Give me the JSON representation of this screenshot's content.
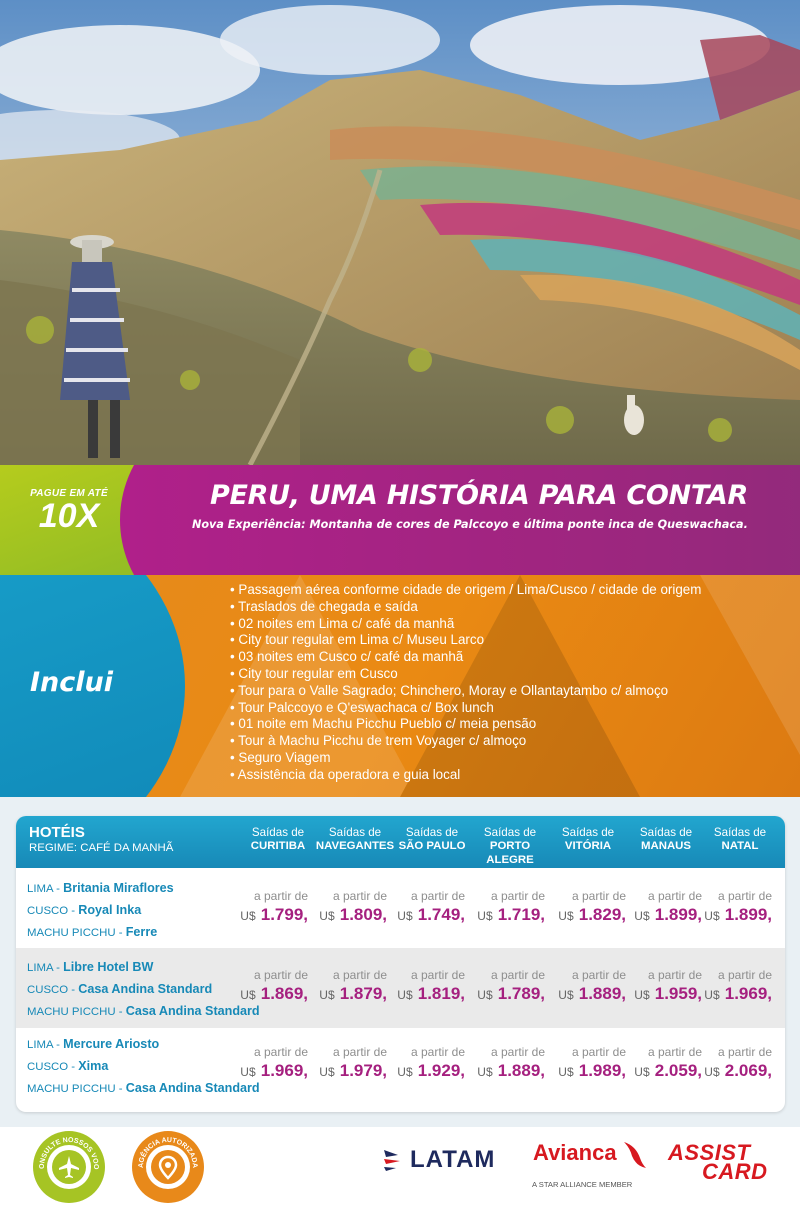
{
  "hero": {
    "description_icon": "mountain-photo"
  },
  "banner": {
    "badge_top": "PAGUE EM ATÉ",
    "badge_big": "10X",
    "title": "PERU, UMA HISTÓRIA PARA CONTAR",
    "subtitle": "Nova Experiência: Montanha de cores de Palccoyo e última ponte inca de Queswachaca."
  },
  "includes": {
    "label": "Inclui",
    "items": [
      "Passagem aérea conforme cidade de origem / Lima/Cusco / cidade de origem",
      "Traslados de chegada e saída",
      "02 noites em Lima c/ café da manhã",
      "City tour regular em Lima c/ Museu Larco",
      "03 noites em Cusco c/ café da manhã",
      "City tour regular em Cusco",
      "Tour para o Valle Sagrado; Chinchero, Moray e Ollantaytambo c/ almoço",
      "Tour Palccoyo e Q'eswachaca c/ Box lunch",
      "01 noite em Machu Picchu Pueblo c/ meia pensão",
      "Tour à Machu Picchu de trem Voyager c/ almoço",
      "Seguro Viagem",
      "Assistência da operadora e guia local"
    ]
  },
  "table": {
    "hotels_label": "HOTÉIS",
    "regime_label": "REGIME: CAFÉ DA MANHÃ",
    "departures_prefix": "Saídas de",
    "cities": [
      "CURITIBA",
      "NAVEGANTES",
      "SÃO PAULO",
      "PORTO ALEGRE",
      "VITÓRIA",
      "MANAUS",
      "NATAL"
    ],
    "from_label": "a partir de",
    "currency": "U$",
    "rows": [
      {
        "hotels": [
          {
            "city": "LIMA",
            "name": "Britania Miraflores"
          },
          {
            "city": "CUSCO",
            "name": "Royal Inka"
          },
          {
            "city": "MACHU PICCHU",
            "name": "Ferre"
          }
        ],
        "prices": [
          "1.799,",
          "1.809,",
          "1.749,",
          "1.719,",
          "1.829,",
          "1.899,",
          "1.899,"
        ]
      },
      {
        "hotels": [
          {
            "city": "LIMA",
            "name": "Libre Hotel BW"
          },
          {
            "city": "CUSCO",
            "name": "Casa Andina Standard"
          },
          {
            "city": "MACHU PICCHU",
            "name": "Casa Andina Standard"
          }
        ],
        "prices": [
          "1.869,",
          "1.879,",
          "1.819,",
          "1.789,",
          "1.889,",
          "1.959,",
          "1.969,"
        ]
      },
      {
        "hotels": [
          {
            "city": "LIMA",
            "name": "Mercure Ariosto"
          },
          {
            "city": "CUSCO",
            "name": "Xima"
          },
          {
            "city": "MACHU PICCHU",
            "name": "Casa Andina Standard"
          }
        ],
        "prices": [
          "1.969,",
          "1.979,",
          "1.929,",
          "1.889,",
          "1.989,",
          "2.059,",
          "2.069,"
        ]
      }
    ]
  },
  "footer": {
    "badge1_text": "CONSULTE NOSSOS VOOS",
    "badge2_text": "AGÊNCIA AUTORIZADA",
    "latam": "LATAM",
    "avianca": "Avianca",
    "avianca_sub": "A STAR ALLIANCE MEMBER",
    "assist_line1": "ASSIST",
    "assist_line2": "CARD"
  },
  "colors": {
    "magenta": "#a5207f",
    "green": "#a6c424",
    "blue": "#1789b7",
    "orange": "#e8891a"
  }
}
